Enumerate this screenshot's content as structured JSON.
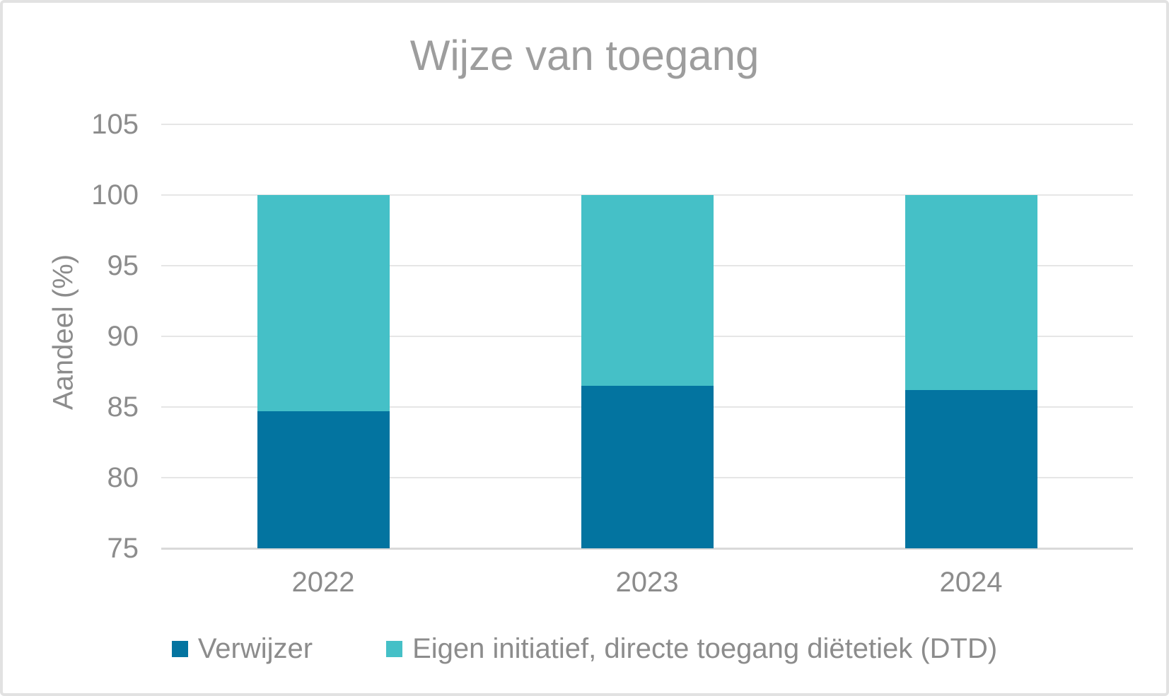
{
  "chart_data": {
    "type": "bar",
    "stacked": true,
    "title": "Wijze van toegang",
    "xlabel": "",
    "ylabel": "Aandeel (%)",
    "categories": [
      "2022",
      "2023",
      "2024"
    ],
    "series": [
      {
        "name": "Verwijzer",
        "color": "#0374a0",
        "values": [
          84.7,
          86.5,
          86.2
        ]
      },
      {
        "name": "Eigen initiatief, directe toegang diëtetiek (DTD)",
        "color": "#45c0c7",
        "values": [
          15.3,
          13.5,
          13.8
        ]
      }
    ],
    "ylim": [
      75,
      105
    ],
    "yticks": [
      105,
      100,
      95,
      90,
      85,
      80,
      75
    ],
    "grid": true,
    "legend_position": "bottom"
  },
  "colors": {
    "series_verwijzer": "#0374a0",
    "series_dtd": "#45c0c7",
    "gridline": "#e6e6e6",
    "axis_baseline": "#d9d9d9",
    "text_gray": "#8c8c8c",
    "title_gray": "#9d9d9d",
    "card_border": "#e2e2e2"
  }
}
